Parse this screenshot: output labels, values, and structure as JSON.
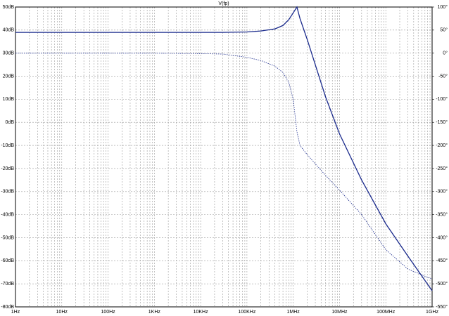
{
  "chart_data": {
    "type": "line",
    "title": "V(fp)",
    "title_color": "#2233aa",
    "xlog": true,
    "grid": true,
    "x": [
      1,
      10,
      100,
      1000,
      10000,
      30000,
      100000,
      200000,
      400000,
      600000,
      800000,
      1000000,
      1200000,
      1400000,
      2000000,
      5000000,
      10000000,
      30000000,
      100000000,
      300000000,
      1000000000
    ],
    "series": [
      {
        "color": "#1a2a8c",
        "dash": false,
        "values": [
          39,
          39,
          39,
          39,
          39,
          39,
          39.2,
          39.6,
          40.5,
          42,
          44.5,
          47.5,
          50,
          45,
          36,
          11,
          -5,
          -25,
          -44,
          -58,
          -73
        ]
      },
      {
        "color": "#1a2a8c",
        "dash": true,
        "axis": "y2",
        "values": [
          0,
          0,
          0,
          0,
          -1,
          -2,
          -9,
          -16,
          -28,
          -42,
          -63,
          -100,
          -170,
          -200,
          -220,
          -265,
          -297,
          -350,
          -426,
          -468,
          -490
        ]
      }
    ],
    "xlim": [
      1,
      1000000000
    ],
    "xticks": [
      {
        "value": 1,
        "label": "1Hz"
      },
      {
        "value": 10,
        "label": "10Hz"
      },
      {
        "value": 100,
        "label": "100Hz"
      },
      {
        "value": 1000,
        "label": "1KHz"
      },
      {
        "value": 10000,
        "label": "10KHz"
      },
      {
        "value": 100000,
        "label": "100KHz"
      },
      {
        "value": 1000000,
        "label": "1MHz"
      },
      {
        "value": 10000000,
        "label": "10MHz"
      },
      {
        "value": 100000000,
        "label": "100MHz"
      },
      {
        "value": 1000000000,
        "label": "1GHz"
      }
    ],
    "ylim": [
      -80,
      50
    ],
    "yticks": [
      {
        "value": 50,
        "label": "50dB"
      },
      {
        "value": 40,
        "label": "40dB"
      },
      {
        "value": 30,
        "label": "30dB"
      },
      {
        "value": 20,
        "label": "20dB"
      },
      {
        "value": 10,
        "label": "10dB"
      },
      {
        "value": 0,
        "label": "0dB"
      },
      {
        "value": -10,
        "label": "-10dB"
      },
      {
        "value": -20,
        "label": "-20dB"
      },
      {
        "value": -30,
        "label": "-30dB"
      },
      {
        "value": -40,
        "label": "-40dB"
      },
      {
        "value": -50,
        "label": "-50dB"
      },
      {
        "value": -60,
        "label": "-60dB"
      },
      {
        "value": -70,
        "label": "-70dB"
      },
      {
        "value": -80,
        "label": "-80dB"
      }
    ],
    "y2lim": [
      -550,
      100
    ],
    "y2ticks": [
      {
        "value": 100,
        "label": "100°"
      },
      {
        "value": 50,
        "label": "50°"
      },
      {
        "value": 0,
        "label": "0°"
      },
      {
        "value": -50,
        "label": "-50°"
      },
      {
        "value": -100,
        "label": "-100°"
      },
      {
        "value": -150,
        "label": "-150°"
      },
      {
        "value": -200,
        "label": "-200°"
      },
      {
        "value": -250,
        "label": "-250°"
      },
      {
        "value": -300,
        "label": "-300°"
      },
      {
        "value": -350,
        "label": "-350°"
      },
      {
        "value": -400,
        "label": "-400°"
      },
      {
        "value": -450,
        "label": "-450°"
      },
      {
        "value": -500,
        "label": "-500°"
      },
      {
        "value": -550,
        "label": "-550°"
      }
    ]
  }
}
